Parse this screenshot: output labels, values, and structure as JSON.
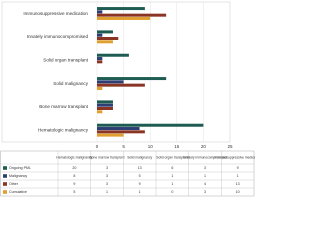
{
  "chart_data": {
    "type": "barh",
    "categories": [
      "Hematologic malignancy",
      "Bone marrow transplant",
      "Solid malignancy",
      "Solid organ transplant",
      "Innately immunocompromised",
      "Immunosuppressive medication"
    ],
    "series": [
      {
        "name": "Ongoing PML",
        "color": "#1e5b52",
        "values": [
          20,
          3,
          13,
          6,
          3,
          9
        ]
      },
      {
        "name": "Malignancy",
        "color": "#2c3e73",
        "values": [
          8,
          3,
          5,
          1,
          1,
          1
        ]
      },
      {
        "name": "Other",
        "color": "#8a3524",
        "values": [
          9,
          3,
          9,
          1,
          4,
          13
        ]
      },
      {
        "name": "Cumulative",
        "color": "#e0a030",
        "values": [
          5,
          1,
          1,
          0,
          3,
          10
        ]
      }
    ],
    "xlim": [
      0,
      25
    ],
    "xticks": [
      0,
      5,
      10,
      15,
      20,
      25
    ],
    "grid": true
  }
}
